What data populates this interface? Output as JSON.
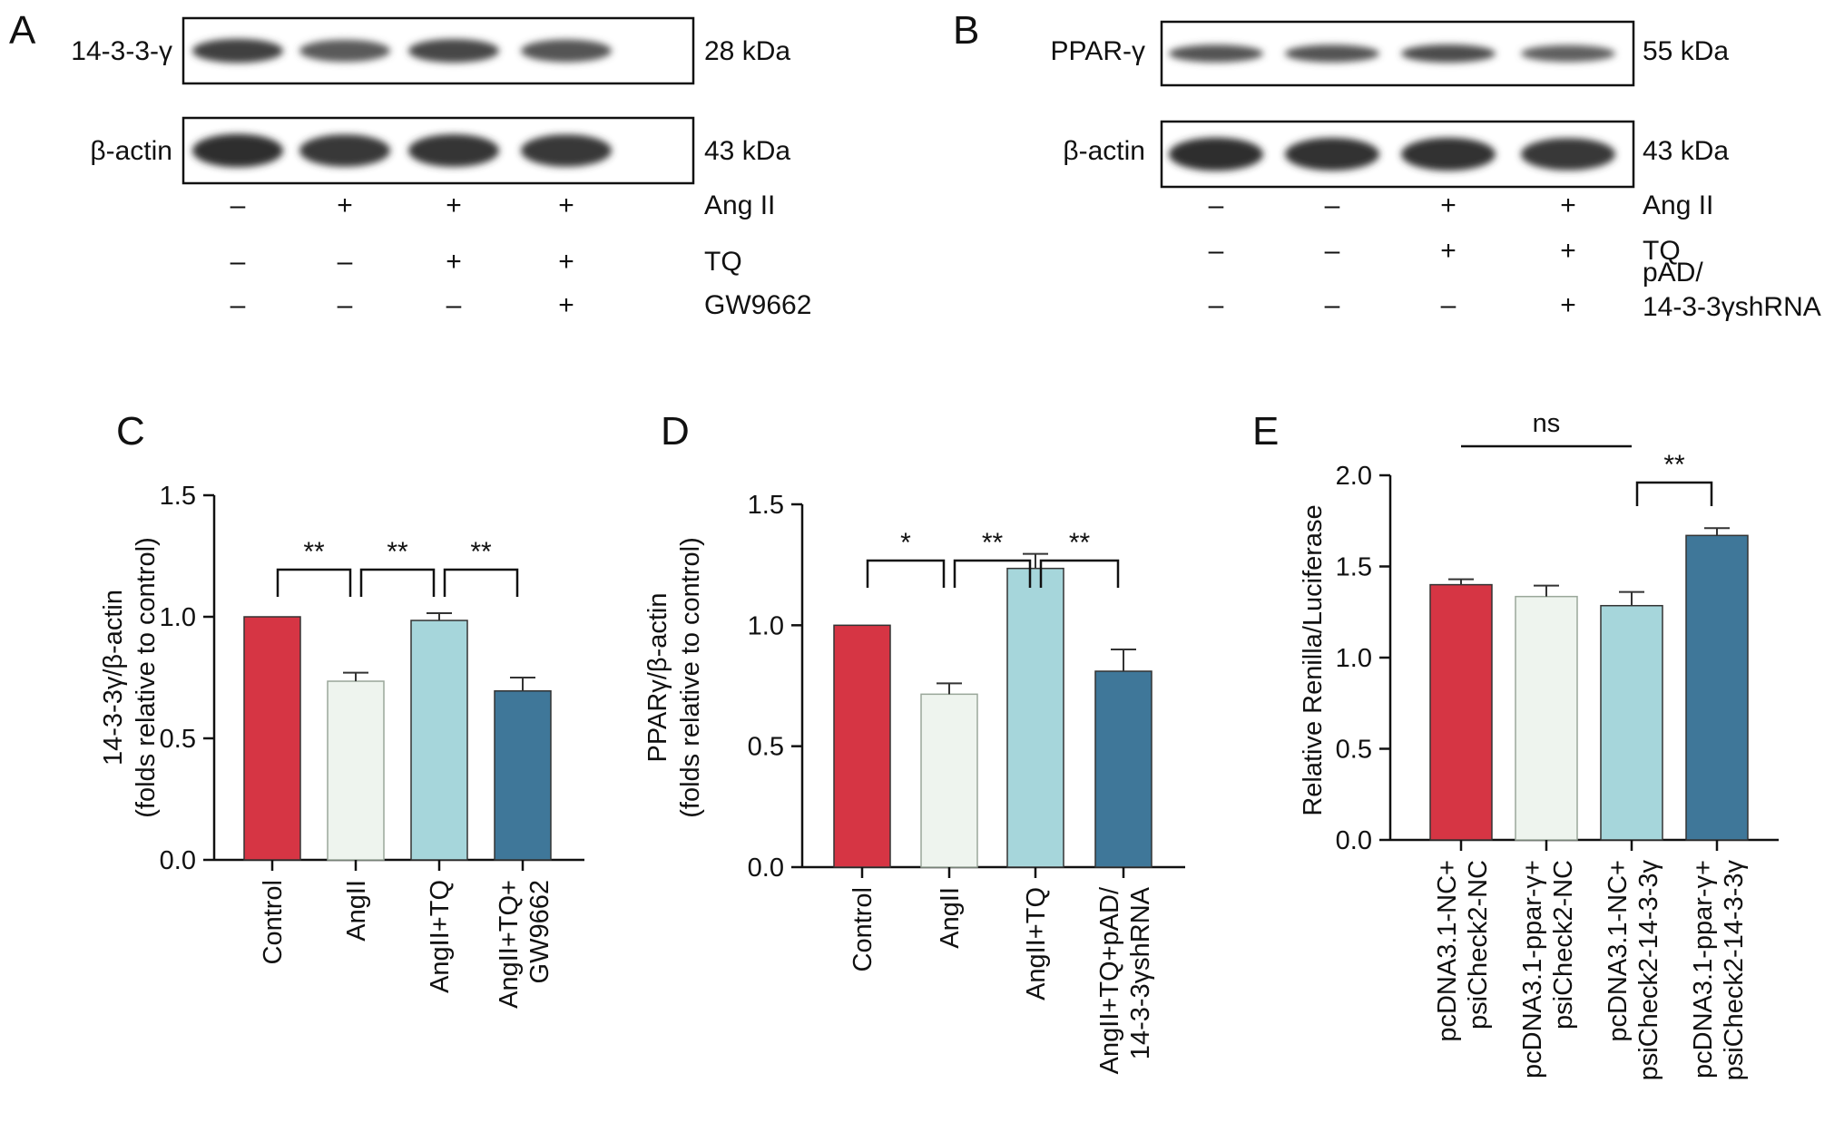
{
  "blots": [
    {
      "panel_letter": "A",
      "rows": [
        {
          "label": "14-3-3-γ",
          "mw": "28 kDa",
          "intensity": [
            0.78,
            0.55,
            0.72,
            0.6
          ]
        },
        {
          "label": "β-actin",
          "mw": "43 kDa",
          "intensity": [
            0.95,
            0.85,
            0.88,
            0.85
          ]
        }
      ],
      "conditions": [
        {
          "label": "Ang II",
          "signs": [
            "–",
            "+",
            "+",
            "+"
          ]
        },
        {
          "label": "TQ",
          "signs": [
            "–",
            "–",
            "+",
            "+"
          ]
        },
        {
          "label": "GW9662",
          "signs": [
            "–",
            "–",
            "–",
            "+"
          ]
        }
      ]
    },
    {
      "panel_letter": "B",
      "rows": [
        {
          "label": "PPAR-γ",
          "mw": "55 kDa",
          "intensity": [
            0.62,
            0.62,
            0.68,
            0.5
          ]
        },
        {
          "label": "β-actin",
          "mw": "43 kDa",
          "intensity": [
            0.95,
            0.9,
            0.92,
            0.85
          ]
        }
      ],
      "conditions": [
        {
          "label": "Ang II",
          "signs": [
            "–",
            "–",
            "+",
            "+"
          ]
        },
        {
          "label": "TQ",
          "signs": [
            "–",
            "–",
            "+",
            "+"
          ]
        },
        {
          "label": "pAD/\n14-3-3γshRNA",
          "signs": [
            "–",
            "–",
            "–",
            "+"
          ]
        }
      ]
    }
  ],
  "chart_data": [
    {
      "panel_letter": "C",
      "type": "bar",
      "categories": [
        "Control",
        "AngII",
        "AngII+TQ",
        "AngII+TQ+\nGW9662"
      ],
      "values": [
        1.0,
        0.735,
        0.985,
        0.695
      ],
      "errors": [
        0,
        0.035,
        0.03,
        0.055
      ],
      "colors": [
        "#d63544",
        "#eef4ee",
        "#a6d6db",
        "#3f7799"
      ],
      "ylabel": "14-3-3γ/β-actin\n(folds relative to control)",
      "ylim": [
        0,
        1.5
      ],
      "yticks": [
        "0.0",
        "0.5",
        "1.0",
        "1.5"
      ],
      "tick_values": [
        0,
        0.5,
        1.0,
        1.5
      ],
      "significance": [
        {
          "from": 0,
          "to": 1,
          "label": "**"
        },
        {
          "from": 1,
          "to": 2,
          "label": "**"
        },
        {
          "from": 2,
          "to": 3,
          "label": "**"
        }
      ],
      "grid": false
    },
    {
      "panel_letter": "D",
      "type": "bar",
      "categories": [
        "Control",
        "AngII",
        "AngII+TQ",
        "AngII+TQ+pAD/\n14-3-3γshRNA"
      ],
      "values": [
        1.0,
        0.715,
        1.235,
        0.81
      ],
      "errors": [
        0,
        0.045,
        0.06,
        0.09
      ],
      "colors": [
        "#d63544",
        "#eef4ee",
        "#a6d6db",
        "#3f7799"
      ],
      "ylabel": "PPARγ/β-actin\n(folds relative to control)",
      "ylim": [
        0,
        1.5
      ],
      "yticks": [
        "0.0",
        "0.5",
        "1.0",
        "1.5"
      ],
      "tick_values": [
        0,
        0.5,
        1.0,
        1.5
      ],
      "significance": [
        {
          "from": 0,
          "to": 1,
          "label": "*"
        },
        {
          "from": 1,
          "to": 2,
          "label": "**"
        },
        {
          "from": 2,
          "to": 3,
          "label": "**"
        }
      ],
      "grid": false
    },
    {
      "panel_letter": "E",
      "type": "bar",
      "categories": [
        "pcDNA3.1-NC+\npsiCheck2-NC",
        "pcDNA3.1-ppar-γ+\npsiCheck2-NC",
        "pcDNA3.1-NC+\npsiCheck2-14-3-3γ",
        "pcDNA3.1-ppar-γ+\npsiCheck2-14-3-3γ"
      ],
      "values": [
        1.4,
        1.335,
        1.285,
        1.67
      ],
      "errors": [
        0.03,
        0.06,
        0.075,
        0.04
      ],
      "colors": [
        "#d63544",
        "#eef4ee",
        "#a6d6db",
        "#3f7799"
      ],
      "ylabel": "Relative Renilla/Luciferase",
      "ylim": [
        0,
        2.0
      ],
      "yticks": [
        "0.0",
        "0.5",
        "1.0",
        "1.5",
        "2.0"
      ],
      "tick_values": [
        0,
        0.5,
        1.0,
        1.5,
        2.0
      ],
      "significance": [
        {
          "from": 0,
          "to": 2,
          "label": "ns",
          "style": "line"
        },
        {
          "from": 2,
          "to": 3,
          "label": "**"
        }
      ],
      "grid": false
    }
  ]
}
